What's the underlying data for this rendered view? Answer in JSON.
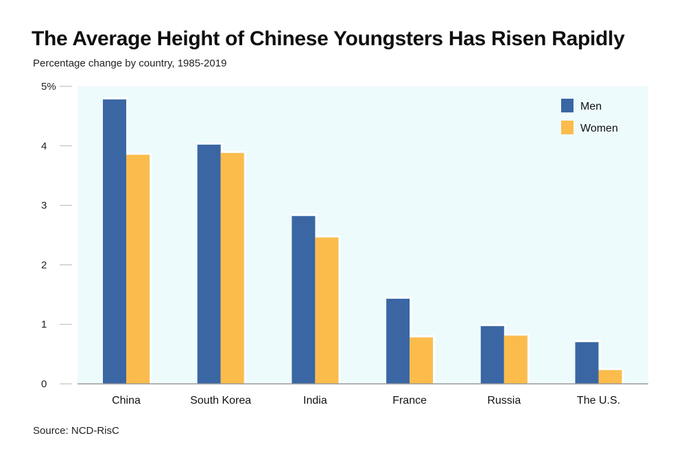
{
  "chart_data": {
    "type": "bar",
    "title": "The Average Height of Chinese Youngsters Has Risen Rapidly",
    "subtitle": "Percentage change by country, 1985-2019",
    "source": "Source: NCD-RisC",
    "categories": [
      "China",
      "South Korea",
      "India",
      "France",
      "Russia",
      "The U.S."
    ],
    "series": [
      {
        "name": "Men",
        "color": "#3a66a4",
        "values": [
          4.78,
          4.02,
          2.82,
          1.43,
          0.97,
          0.7
        ]
      },
      {
        "name": "Women",
        "color": "#fbbc4c",
        "values": [
          3.85,
          3.88,
          2.46,
          0.78,
          0.81,
          0.23
        ]
      }
    ],
    "ylim": [
      0,
      5
    ],
    "yticks": [
      {
        "value": 0,
        "label": "0"
      },
      {
        "value": 1,
        "label": "1"
      },
      {
        "value": 2,
        "label": "2"
      },
      {
        "value": 3,
        "label": "3"
      },
      {
        "value": 4,
        "label": "4"
      },
      {
        "value": 5,
        "label": "5%"
      }
    ],
    "legend_position": "top-right",
    "background_color": "#eefbfd",
    "xlabel": "",
    "ylabel": ""
  }
}
